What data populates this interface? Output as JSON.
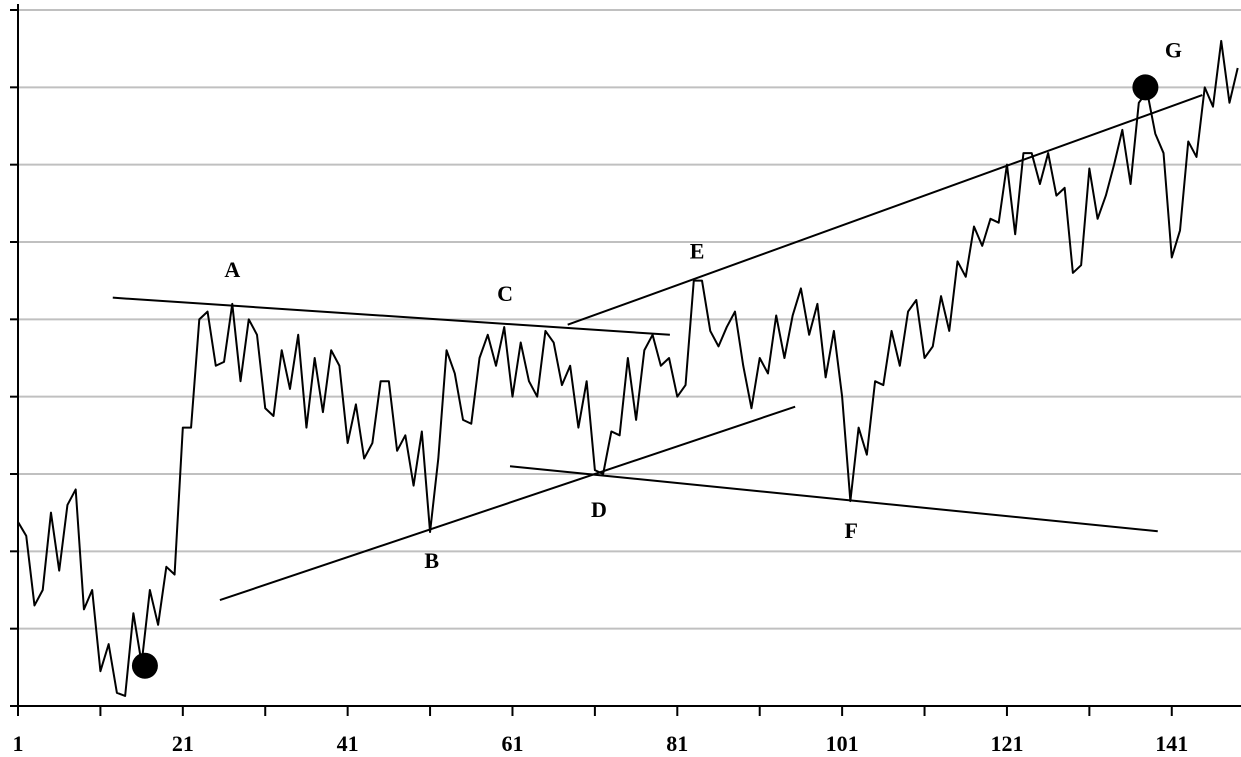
{
  "chart_data": {
    "type": "line",
    "x": [
      1,
      2,
      3,
      4,
      5,
      6,
      7,
      8,
      9,
      10,
      11,
      12,
      13,
      14,
      15,
      16,
      17,
      18,
      19,
      20,
      21,
      22,
      23,
      24,
      25,
      26,
      27,
      28,
      29,
      30,
      31,
      32,
      33,
      34,
      35,
      36,
      37,
      38,
      39,
      40,
      41,
      42,
      43,
      44,
      45,
      46,
      47,
      48,
      49,
      50,
      51,
      52,
      53,
      54,
      55,
      56,
      57,
      58,
      59,
      60,
      61,
      62,
      63,
      64,
      65,
      66,
      67,
      68,
      69,
      70,
      71,
      72,
      73,
      74,
      75,
      76,
      77,
      78,
      79,
      80,
      81,
      82,
      83,
      84,
      85,
      86,
      87,
      88,
      89,
      90,
      91,
      92,
      93,
      94,
      95,
      96,
      97,
      98,
      99,
      100,
      101,
      102,
      103,
      104,
      105,
      106,
      107,
      108,
      109,
      110,
      111,
      112,
      113,
      114,
      115,
      116,
      117,
      118,
      119,
      120,
      121,
      122,
      123,
      124,
      125,
      126,
      127,
      128,
      129,
      130,
      131,
      132,
      133,
      134,
      135,
      136,
      137,
      138,
      139,
      140,
      141,
      142,
      143,
      144,
      145,
      146,
      147,
      148,
      149
    ],
    "series": [
      {
        "color": "#000000",
        "values": [
          2.38,
          2.2,
          1.3,
          1.5,
          2.5,
          1.75,
          2.6,
          2.8,
          1.25,
          1.5,
          0.45,
          0.8,
          0.17,
          0.13,
          1.2,
          0.55,
          1.5,
          1.05,
          1.8,
          1.7,
          3.6,
          3.6,
          5.0,
          5.1,
          4.4,
          4.45,
          5.2,
          4.2,
          5.0,
          4.8,
          3.85,
          3.75,
          4.6,
          4.1,
          4.8,
          3.6,
          4.5,
          3.8,
          4.6,
          4.4,
          3.4,
          3.9,
          3.2,
          3.4,
          4.2,
          4.2,
          3.3,
          3.5,
          2.85,
          3.55,
          2.25,
          3.2,
          4.6,
          4.3,
          3.7,
          3.65,
          4.5,
          4.8,
          4.4,
          4.9,
          4.0,
          4.7,
          4.2,
          4.0,
          4.85,
          4.7,
          4.15,
          4.4,
          3.6,
          4.2,
          3.05,
          3.0,
          3.55,
          3.5,
          4.5,
          3.7,
          4.6,
          4.8,
          4.4,
          4.5,
          4.0,
          4.15,
          5.5,
          5.5,
          4.85,
          4.65,
          4.9,
          5.1,
          4.4,
          3.85,
          4.5,
          4.3,
          5.05,
          4.5,
          5.05,
          5.4,
          4.8,
          5.2,
          4.25,
          4.85,
          4.0,
          2.65,
          3.6,
          3.25,
          4.2,
          4.15,
          4.85,
          4.4,
          5.1,
          5.25,
          4.5,
          4.65,
          5.3,
          4.85,
          5.75,
          5.55,
          6.2,
          5.95,
          6.3,
          6.25,
          7.0,
          6.1,
          7.15,
          7.15,
          6.75,
          7.15,
          6.6,
          6.7,
          5.6,
          5.7,
          6.95,
          6.3,
          6.6,
          7.0,
          7.45,
          6.75,
          7.8,
          7.95,
          7.4,
          7.15,
          5.8,
          6.15,
          7.3,
          7.1,
          8.0,
          7.75,
          8.6,
          7.8,
          8.25
        ]
      }
    ],
    "xlim": [
      1,
      149.4
    ],
    "xticks": [
      1,
      21,
      41,
      61,
      81,
      101,
      121,
      141
    ],
    "xminor_ticks": [
      11,
      31,
      51,
      71,
      91,
      111,
      131
    ],
    "ylim": [
      0,
      9
    ],
    "yticks": [
      0,
      1,
      2,
      3,
      4,
      5,
      6,
      7,
      8,
      9
    ],
    "grid": true,
    "grid_color": "#c0c0c0",
    "trendlines": [
      {
        "x": [
          12.5,
          80.1
        ],
        "y": [
          5.28,
          4.8
        ]
      },
      {
        "x": [
          25.5,
          95.3
        ],
        "y": [
          1.37,
          3.87
        ]
      },
      {
        "x": [
          60.7,
          139.3
        ],
        "y": [
          3.1,
          2.26
        ]
      },
      {
        "x": [
          67.7,
          144.7
        ],
        "y": [
          4.93,
          7.9
        ]
      }
    ],
    "markers": [
      {
        "x": 16.4,
        "y": 0.52
      },
      {
        "x": 137.8,
        "y": 8.0
      }
    ],
    "annotations": [
      {
        "text": "A",
        "x": 27,
        "y": 5.61
      },
      {
        "text": "B",
        "x": 51.2,
        "y": 1.85
      },
      {
        "text": "C",
        "x": 60.1,
        "y": 5.3
      },
      {
        "text": "D",
        "x": 71.5,
        "y": 2.51
      },
      {
        "text": "E",
        "x": 83.4,
        "y": 5.85
      },
      {
        "text": "F",
        "x": 102.1,
        "y": 2.24
      },
      {
        "text": "G",
        "x": 141.2,
        "y": 8.45
      }
    ]
  }
}
